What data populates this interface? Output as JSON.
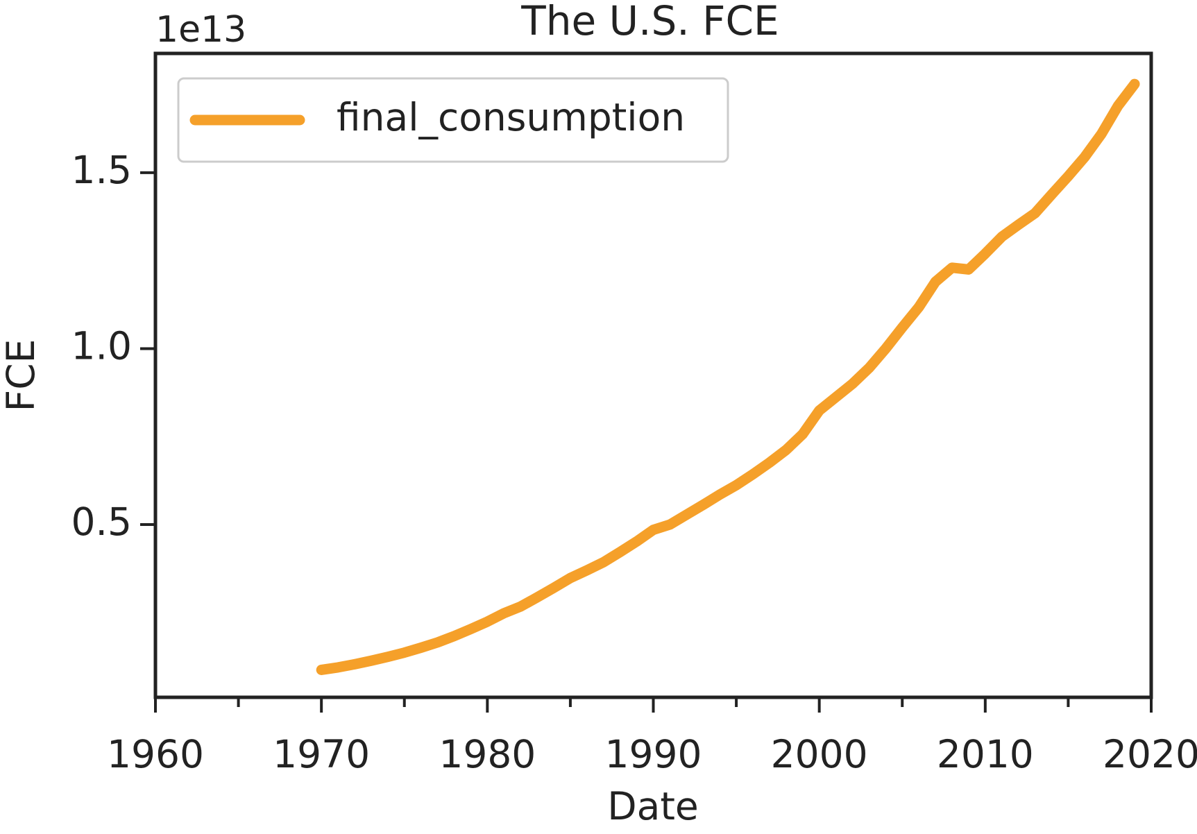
{
  "chart_data": {
    "type": "line",
    "title": "The U.S. FCE",
    "y_offset_label": "1e13",
    "x_label": "Date",
    "y_label": "FCE",
    "x": [
      1970,
      1971,
      1972,
      1973,
      1974,
      1975,
      1976,
      1977,
      1978,
      1979,
      1980,
      1981,
      1982,
      1983,
      1984,
      1985,
      1986,
      1987,
      1988,
      1989,
      1990,
      1991,
      1992,
      1993,
      1994,
      1995,
      1996,
      1997,
      1998,
      1999,
      2000,
      2001,
      2002,
      2003,
      2004,
      2005,
      2006,
      2007,
      2008,
      2009,
      2010,
      2011,
      2012,
      2013,
      2014,
      2015,
      2016,
      2017,
      2018,
      2019
    ],
    "series": [
      {
        "name": "final_consumption",
        "color": "#f5a02a",
        "values": [
          0.087,
          0.094,
          0.103,
          0.113,
          0.124,
          0.136,
          0.15,
          0.165,
          0.183,
          0.203,
          0.224,
          0.248,
          0.267,
          0.293,
          0.32,
          0.348,
          0.37,
          0.393,
          0.422,
          0.452,
          0.485,
          0.5,
          0.528,
          0.556,
          0.585,
          0.612,
          0.643,
          0.676,
          0.712,
          0.757,
          0.824,
          0.862,
          0.9,
          0.945,
          1.0,
          1.06,
          1.118,
          1.19,
          1.23,
          1.225,
          1.27,
          1.318,
          1.352,
          1.385,
          1.438,
          1.49,
          1.545,
          1.61,
          1.69,
          1.752
        ]
      }
    ],
    "xlim": [
      1960,
      2020
    ],
    "xticks": [
      1960,
      1970,
      1980,
      1990,
      2000,
      2010,
      2020
    ],
    "xminorticks": [
      1965,
      1975,
      1985,
      1995,
      2005,
      2015
    ],
    "ylim": [
      0.009,
      1.839
    ],
    "yticks": [
      0.5,
      {
        "value": 1.0,
        "label": "1.0"
      },
      1.5
    ],
    "grid": false,
    "legend": "upper left"
  }
}
